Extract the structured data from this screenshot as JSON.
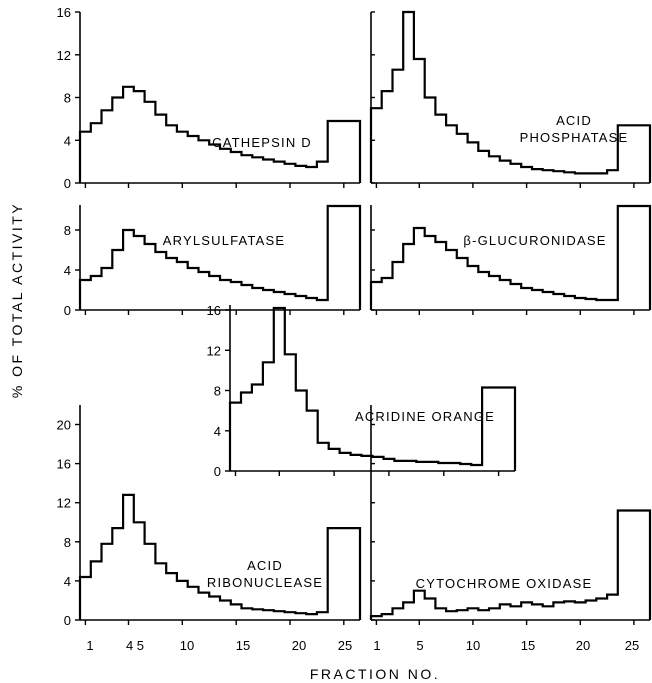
{
  "chart_data": [
    {
      "type": "bar",
      "name": "cathepsin-d",
      "label_lines": [
        "CATHEPSIN D"
      ],
      "x": [
        1,
        2,
        3,
        4,
        5,
        6,
        7,
        8,
        9,
        10,
        11,
        12,
        13,
        14,
        15,
        16,
        17,
        18,
        19,
        20,
        21,
        22,
        23,
        24,
        25,
        26
      ],
      "values": [
        4.8,
        5.6,
        6.8,
        8.0,
        9.0,
        8.6,
        7.6,
        6.4,
        5.4,
        4.8,
        4.4,
        4.0,
        3.6,
        3.2,
        2.9,
        2.6,
        2.4,
        2.2,
        2.0,
        1.8,
        1.6,
        1.5,
        2.0,
        5.8,
        5.8,
        5.8
      ],
      "ylim": [
        0,
        16
      ],
      "yticks": [
        0,
        4,
        8,
        12,
        16
      ],
      "ytick_labels": [
        "0",
        "4",
        "8",
        "12",
        "16"
      ]
    },
    {
      "type": "bar",
      "name": "acid-phosphatase",
      "label_lines": [
        "ACID",
        "PHOSPHATASE"
      ],
      "x": [
        1,
        2,
        3,
        4,
        5,
        6,
        7,
        8,
        9,
        10,
        11,
        12,
        13,
        14,
        15,
        16,
        17,
        18,
        19,
        20,
        21,
        22,
        23,
        24,
        25,
        26
      ],
      "values": [
        7.0,
        8.6,
        10.6,
        16.0,
        11.6,
        8.0,
        6.4,
        5.4,
        4.6,
        3.8,
        3.0,
        2.5,
        2.1,
        1.8,
        1.5,
        1.3,
        1.2,
        1.1,
        1.0,
        0.9,
        0.9,
        0.9,
        1.2,
        5.4,
        5.4,
        5.4
      ],
      "ylim": [
        0,
        16
      ]
    },
    {
      "type": "bar",
      "name": "arylsulfatase",
      "label_lines": [
        "ARYLSULFATASE"
      ],
      "x": [
        1,
        2,
        3,
        4,
        5,
        6,
        7,
        8,
        9,
        10,
        11,
        12,
        13,
        14,
        15,
        16,
        17,
        18,
        19,
        20,
        21,
        22,
        23,
        24,
        25,
        26
      ],
      "values": [
        3.0,
        3.4,
        4.2,
        6.0,
        8.0,
        7.4,
        6.6,
        5.8,
        5.2,
        4.8,
        4.2,
        3.8,
        3.4,
        3.0,
        2.8,
        2.5,
        2.2,
        2.0,
        1.8,
        1.6,
        1.4,
        1.2,
        1.0,
        10.4,
        10.4,
        10.4
      ],
      "ylim": [
        0,
        10.5
      ],
      "yticks": [
        0,
        4,
        8
      ],
      "ytick_labels": [
        "0",
        "4",
        "8"
      ]
    },
    {
      "type": "bar",
      "name": "beta-glucuronidase",
      "label_lines": [
        "β-GLUCURONIDASE"
      ],
      "x": [
        1,
        2,
        3,
        4,
        5,
        6,
        7,
        8,
        9,
        10,
        11,
        12,
        13,
        14,
        15,
        16,
        17,
        18,
        19,
        20,
        21,
        22,
        23,
        24,
        25,
        26
      ],
      "values": [
        2.8,
        3.2,
        4.8,
        6.6,
        8.2,
        7.4,
        6.8,
        6.0,
        5.2,
        4.4,
        3.8,
        3.4,
        3.0,
        2.6,
        2.2,
        2.0,
        1.8,
        1.6,
        1.4,
        1.2,
        1.1,
        1.0,
        1.0,
        10.4,
        10.4,
        10.4
      ],
      "ylim": [
        0,
        10.5
      ]
    },
    {
      "type": "bar",
      "name": "acridine-orange",
      "label_lines": [
        "ACRIDINE ORANGE"
      ],
      "x": [
        1,
        2,
        3,
        4,
        5,
        6,
        7,
        8,
        9,
        10,
        11,
        12,
        13,
        14,
        15,
        16,
        17,
        18,
        19,
        20,
        21,
        22,
        23,
        24,
        25,
        26
      ],
      "values": [
        6.8,
        7.8,
        8.6,
        10.8,
        16.2,
        11.6,
        8.0,
        6.0,
        2.8,
        2.2,
        1.8,
        1.6,
        1.5,
        1.4,
        1.2,
        1.0,
        1.0,
        0.9,
        0.9,
        0.8,
        0.8,
        0.7,
        0.6,
        8.3,
        8.3,
        8.3
      ],
      "ylim": [
        0,
        16.5
      ],
      "yticks": [
        0,
        4,
        8,
        12,
        16
      ],
      "ytick_labels": [
        "0",
        "4",
        "8",
        "12",
        "16"
      ]
    },
    {
      "type": "bar",
      "name": "acid-ribonuclease",
      "label_lines": [
        "ACID",
        "RIBONUCLEASE"
      ],
      "x": [
        1,
        2,
        3,
        4,
        5,
        6,
        7,
        8,
        9,
        10,
        11,
        12,
        13,
        14,
        15,
        16,
        17,
        18,
        19,
        20,
        21,
        22,
        23,
        24,
        25,
        26
      ],
      "values": [
        4.4,
        6.0,
        7.8,
        9.4,
        12.8,
        10.0,
        7.8,
        5.8,
        4.8,
        4.0,
        3.4,
        2.8,
        2.4,
        2.0,
        1.6,
        1.2,
        1.1,
        1.0,
        0.9,
        0.8,
        0.7,
        0.6,
        0.8,
        9.4,
        9.4,
        9.4
      ],
      "ylim": [
        0,
        22
      ],
      "yticks": [
        0,
        4,
        8,
        12,
        16,
        20
      ],
      "ytick_labels": [
        "0",
        "4",
        "8",
        "12",
        "16",
        "20"
      ]
    },
    {
      "type": "bar",
      "name": "cytochrome-oxidase",
      "label_lines": [
        "CYTOCHROME OXIDASE"
      ],
      "x": [
        1,
        2,
        3,
        4,
        5,
        6,
        7,
        8,
        9,
        10,
        11,
        12,
        13,
        14,
        15,
        16,
        17,
        18,
        19,
        20,
        21,
        22,
        23,
        24,
        25,
        26
      ],
      "values": [
        0.4,
        0.6,
        1.2,
        1.8,
        3.0,
        2.2,
        1.2,
        0.9,
        1.0,
        1.2,
        1.0,
        1.2,
        1.6,
        1.4,
        1.8,
        1.6,
        1.4,
        1.8,
        1.9,
        1.8,
        2.0,
        2.2,
        2.6,
        11.2,
        11.2,
        11.2
      ],
      "ylim": [
        0,
        22
      ]
    }
  ],
  "xaxis": {
    "title": "FRACTION NO.",
    "ticks": [
      1,
      5,
      10,
      15,
      20,
      25
    ],
    "tick_labels": [
      "1",
      "4 5",
      "10",
      "15",
      "20",
      "25"
    ]
  },
  "yaxis": {
    "title": "% OF TOTAL ACTIVITY"
  }
}
